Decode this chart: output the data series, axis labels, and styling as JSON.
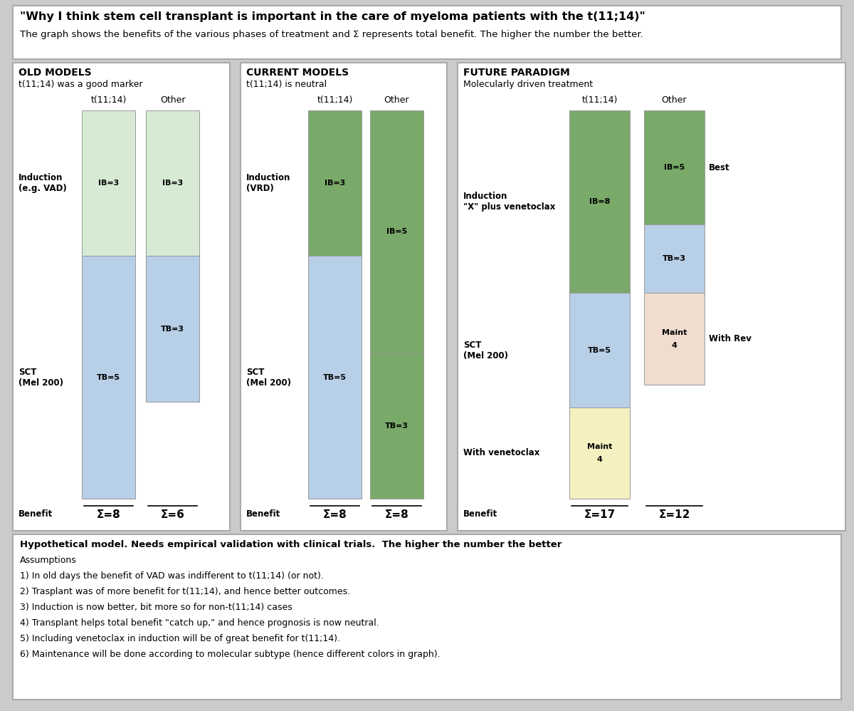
{
  "title": "\"Why I think stem cell transplant is important in the care of myeloma patients with the t(11;14)\"",
  "subtitle": "The graph shows the benefits of the various phases of treatment and Σ represents total benefit. The higher the number the better.",
  "bg_color": "#cbcbcb",
  "panel_bg": "#ffffff",
  "sections": [
    {
      "title": "OLD MODELS",
      "subtitle": "t(11;14) was a good marker",
      "cols": [
        {
          "header": "t(11;14)",
          "bars": [
            {
              "label": "IB=3",
              "value": 3,
              "color": "#d6ead4"
            },
            {
              "label": "TB=5",
              "value": 5,
              "color": "#b8cfe8"
            }
          ],
          "total": "Σ=8"
        },
        {
          "header": "Other",
          "bars": [
            {
              "label": "IB=3",
              "value": 3,
              "color": "#d6ead4"
            },
            {
              "label": "TB=3",
              "value": 3,
              "color": "#b8cfe8"
            }
          ],
          "total": "Σ=6"
        }
      ],
      "row_labels": [
        "Induction\n(e.g. VAD)",
        "SCT\n(Mel 200)"
      ]
    },
    {
      "title": "CURRENT MODELS",
      "subtitle": "t(11;14) is neutral",
      "cols": [
        {
          "header": "t(11;14)",
          "bars": [
            {
              "label": "IB=3",
              "value": 3,
              "color": "#7aaa6a"
            },
            {
              "label": "TB=5",
              "value": 5,
              "color": "#b8cfe8"
            }
          ],
          "total": "Σ=8"
        },
        {
          "header": "Other",
          "bars": [
            {
              "label": "IB=5",
              "value": 5,
              "color": "#7aaa6a"
            },
            {
              "label": "TB=3",
              "value": 3,
              "color": "#7aaa6a"
            }
          ],
          "total": "Σ=8"
        }
      ],
      "row_labels": [
        "Induction\n(VRD)",
        "SCT\n(Mel 200)"
      ]
    },
    {
      "title": "FUTURE PARADIGM",
      "subtitle": "Molecularly driven treatment",
      "cols": [
        {
          "header": "t(11;14)",
          "bars": [
            {
              "label": "IB=8",
              "value": 8,
              "color": "#7aaa6a"
            },
            {
              "label": "TB=5",
              "value": 5,
              "color": "#b8cfe8"
            },
            {
              "label": "Maint\n4",
              "value": 4,
              "color": "#f5f0c0"
            }
          ],
          "total": "Σ=17"
        },
        {
          "header": "Other",
          "bars": [
            {
              "label": "IB=5",
              "value": 5,
              "color": "#7aaa6a"
            },
            {
              "label": "TB=3",
              "value": 3,
              "color": "#b8cfe8"
            },
            {
              "label": "Maint\n4",
              "value": 4,
              "color": "#f0ddd0"
            }
          ],
          "total": "Σ=12"
        }
      ],
      "row_labels": [
        "Induction\n\"X\" plus venetoclax",
        "SCT\n(Mel 200)",
        "With venetoclax"
      ],
      "right_labels": [
        "Best",
        "With Rev"
      ]
    }
  ],
  "footnote_bold": "Hypothetical model. Needs empirical validation with clinical trials.  The higher the number the better",
  "footnote_lines": [
    "Assumptions",
    "1) In old days the benefit of VAD was indifferent to t(11;14) (or not).",
    "2) Trasplant was of more benefit for t(11;14), and hence better outcomes.",
    "3) Induction is now better, bit more so for non-t(11;14) cases",
    "4) Transplant helps total benefit \"catch up,\" and hence prognosis is now neutral.",
    "5) Including venetoclax in induction will be of great benefit for t(11;14).",
    "6) Maintenance will be done according to molecular subtype (hence different colors in graph)."
  ]
}
